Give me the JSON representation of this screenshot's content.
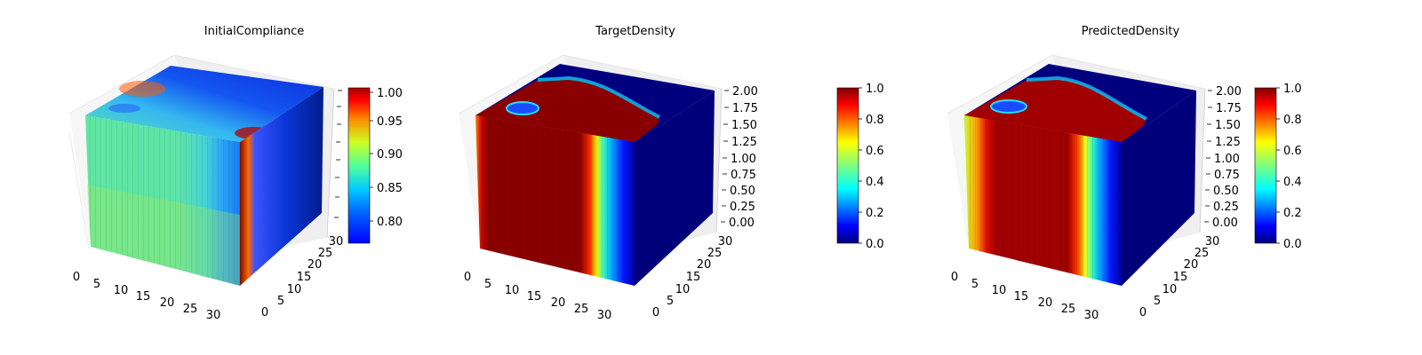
{
  "chart_data": [
    {
      "type": "3d-voxel",
      "title": "InitialCompliance",
      "x_ticks": [
        "0",
        "5",
        "10",
        "15",
        "20",
        "25",
        "30"
      ],
      "y_ticks": [
        "0",
        "5",
        "10",
        "15",
        "20",
        "25",
        "30"
      ],
      "z_ticks": [],
      "x_range": [
        0,
        32
      ],
      "y_range": [
        0,
        32
      ],
      "colorbar": {
        "range": [
          0.77,
          1.0
        ],
        "ticks": [
          "0.80",
          "0.85",
          "0.90",
          "0.95",
          "1.00"
        ]
      },
      "colormap": "jet",
      "grid": true
    },
    {
      "type": "3d-voxel",
      "title": "TargetDensity",
      "x_ticks": [
        "0",
        "5",
        "10",
        "15",
        "20",
        "25",
        "30"
      ],
      "y_ticks": [
        "0",
        "5",
        "10",
        "15",
        "20",
        "25",
        "30"
      ],
      "z_ticks": [
        "0.00",
        "0.25",
        "0.50",
        "0.75",
        "1.00",
        "1.25",
        "1.50",
        "1.75",
        "2.00"
      ],
      "x_range": [
        0,
        32
      ],
      "y_range": [
        0,
        32
      ],
      "z_range": [
        0,
        2
      ],
      "colorbar": {
        "range": [
          0,
          1
        ],
        "ticks": [
          "0.0",
          "0.2",
          "0.4",
          "0.6",
          "0.8",
          "1.0"
        ]
      },
      "colormap": "jet",
      "grid": true
    },
    {
      "type": "3d-voxel",
      "title": "PredictedDensity",
      "x_ticks": [
        "0",
        "5",
        "10",
        "15",
        "20",
        "25",
        "30"
      ],
      "y_ticks": [
        "0",
        "5",
        "10",
        "15",
        "20",
        "25",
        "30"
      ],
      "z_ticks": [
        "0.00",
        "0.25",
        "0.50",
        "0.75",
        "1.00",
        "1.25",
        "1.50",
        "1.75",
        "2.00"
      ],
      "x_range": [
        0,
        32
      ],
      "y_range": [
        0,
        32
      ],
      "z_range": [
        0,
        2
      ],
      "colorbar": {
        "range": [
          0,
          1
        ],
        "ticks": [
          "0.0",
          "0.2",
          "0.4",
          "0.6",
          "0.8",
          "1.0"
        ]
      },
      "colormap": "jet",
      "grid": true
    }
  ]
}
